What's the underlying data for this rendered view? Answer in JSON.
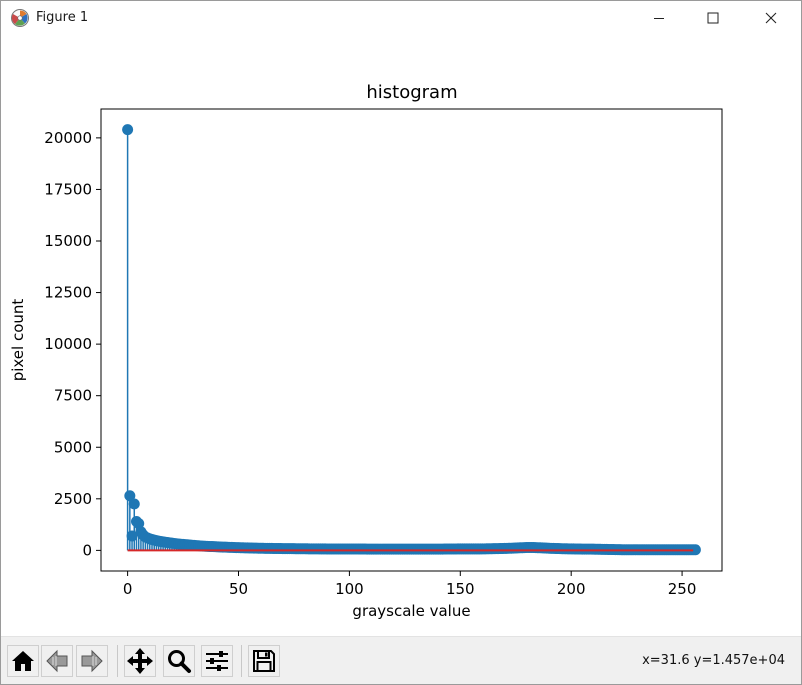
{
  "window": {
    "title": "Figure 1",
    "icon": "matplotlib-logo-icon",
    "controls": [
      "minimize-icon",
      "maximize-icon",
      "close-icon"
    ]
  },
  "chart_data": {
    "type": "stem",
    "title": "histogram",
    "xlabel": "grayscale value",
    "ylabel": "pixel count",
    "xlim": [
      -12,
      268
    ],
    "ylim": [
      -1000,
      21400
    ],
    "xticks": [
      0,
      50,
      100,
      150,
      200,
      250
    ],
    "yticks": [
      0,
      2500,
      5000,
      7500,
      10000,
      12500,
      15000,
      17500,
      20000
    ],
    "colors": {
      "stem": "#1f77b4",
      "baseline": "#d62728"
    },
    "x_range": [
      0,
      255
    ],
    "values": [
      20400,
      2650,
      700,
      2250,
      1400,
      1300,
      900,
      750,
      650,
      600,
      560,
      530,
      500,
      470,
      450,
      430,
      410,
      395,
      380,
      365,
      350,
      335,
      320,
      310,
      300,
      290,
      280,
      270,
      260,
      250,
      240,
      230,
      222,
      215,
      208,
      200,
      195,
      190,
      185,
      180,
      175,
      170,
      165,
      160,
      156,
      152,
      148,
      144,
      140,
      136,
      132,
      128,
      125,
      122,
      119,
      116,
      113,
      110,
      108,
      106,
      104,
      102,
      100,
      98,
      96,
      94,
      92,
      90,
      89,
      88,
      87,
      86,
      85,
      84,
      83,
      82,
      81,
      80,
      79,
      78,
      77,
      76,
      75,
      74,
      73,
      72,
      71,
      70,
      70,
      70,
      69,
      69,
      69,
      68,
      68,
      68,
      67,
      67,
      67,
      66,
      66,
      66,
      65,
      65,
      65,
      64,
      64,
      64,
      63,
      63,
      63,
      62,
      62,
      62,
      61,
      61,
      61,
      60,
      60,
      60,
      60,
      60,
      60,
      60,
      60,
      60,
      60,
      60,
      60,
      60,
      60,
      60,
      60,
      60,
      60,
      60,
      60,
      60,
      60,
      60,
      61,
      62,
      63,
      64,
      65,
      66,
      67,
      68,
      69,
      70,
      70,
      70,
      70,
      70,
      70,
      70,
      70,
      70,
      70,
      70,
      72,
      74,
      76,
      78,
      80,
      82,
      84,
      86,
      88,
      90,
      94,
      98,
      102,
      106,
      110,
      115,
      120,
      125,
      130,
      135,
      140,
      140,
      140,
      138,
      135,
      130,
      125,
      120,
      115,
      110,
      105,
      100,
      96,
      92,
      88,
      84,
      80,
      78,
      76,
      74,
      72,
      70,
      68,
      66,
      64,
      62,
      60,
      60,
      60,
      60,
      58,
      56,
      54,
      52,
      50,
      48,
      46,
      44,
      42,
      40,
      38,
      36,
      34,
      32,
      30,
      30,
      30,
      30,
      30,
      30,
      30,
      30,
      30,
      30,
      30,
      30,
      30,
      30,
      30,
      30,
      30,
      30,
      30,
      30,
      30,
      30,
      30,
      30,
      30,
      30,
      30,
      30,
      30,
      30,
      30,
      30,
      30
    ]
  },
  "toolbar": {
    "buttons": [
      {
        "name": "home-button",
        "icon": "home-icon"
      },
      {
        "name": "back-button",
        "icon": "back-arrow-icon"
      },
      {
        "name": "forward-button",
        "icon": "forward-arrow-icon"
      },
      {
        "name": "pan-button",
        "icon": "move-icon"
      },
      {
        "name": "zoom-button",
        "icon": "magnifier-icon"
      },
      {
        "name": "configure-subplots-button",
        "icon": "sliders-icon"
      },
      {
        "name": "save-button",
        "icon": "floppy-disk-icon"
      }
    ],
    "coords": "x=31.6 y=1.457e+04"
  }
}
